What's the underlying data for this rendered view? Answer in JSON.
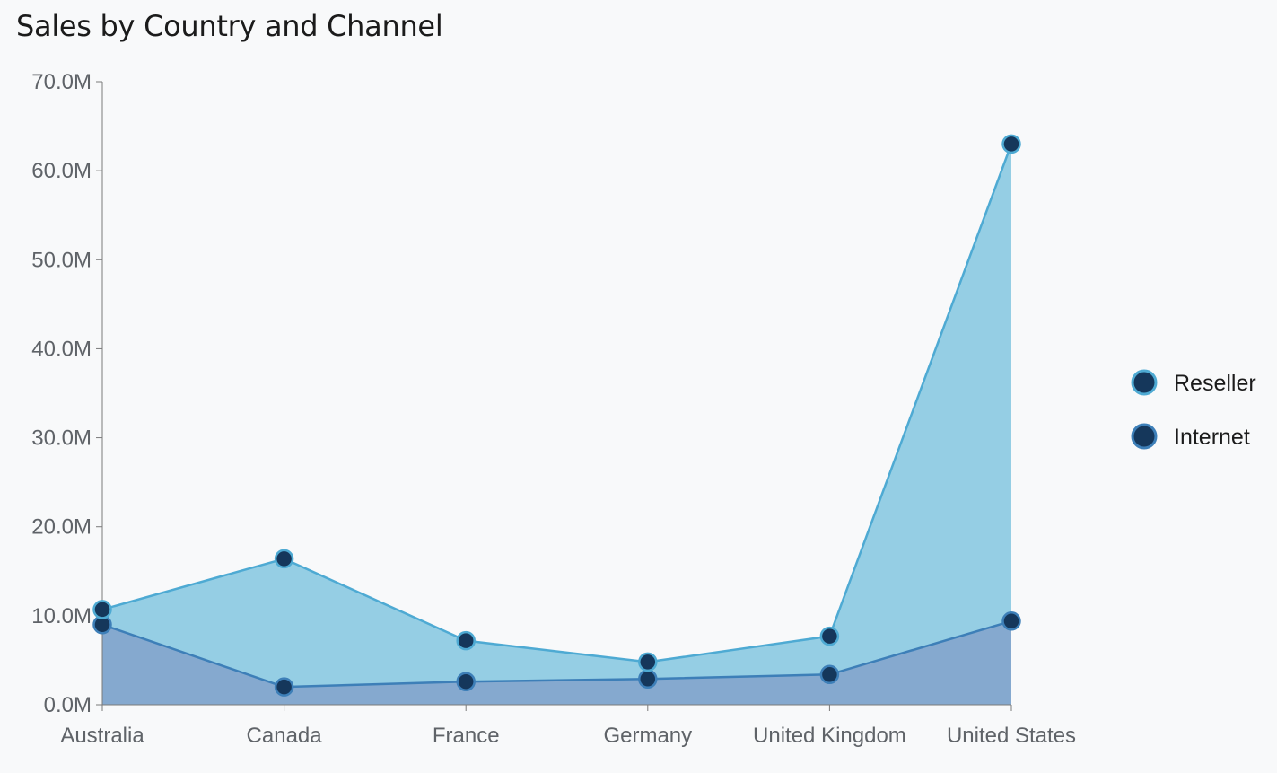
{
  "chart_data": {
    "type": "area",
    "stacked": true,
    "title": "Sales by Country and Channel",
    "xlabel": "",
    "ylabel": "",
    "categories": [
      "Australia",
      "Canada",
      "France",
      "Germany",
      "United Kingdom",
      "United States"
    ],
    "ylim": [
      0,
      70000000
    ],
    "yticks": [
      "0.0M",
      "10.0M",
      "20.0M",
      "30.0M",
      "40.0M",
      "50.0M",
      "60.0M",
      "70.0M"
    ],
    "series": [
      {
        "name": "Internet",
        "values": [
          9000000,
          2000000,
          2600000,
          2900000,
          3400000,
          9400000
        ],
        "fill": "#85a9cf",
        "line": "#3d7fb8",
        "marker": "#15375b"
      },
      {
        "name": "Reseller",
        "values": [
          1700000,
          14400000,
          4600000,
          1900000,
          4300000,
          53600000
        ],
        "fill": "#95cee4",
        "line": "#4eaad3",
        "marker": "#15375b"
      }
    ],
    "legend": {
      "position": "right",
      "order": [
        "Reseller",
        "Internet"
      ]
    },
    "grid": false
  }
}
